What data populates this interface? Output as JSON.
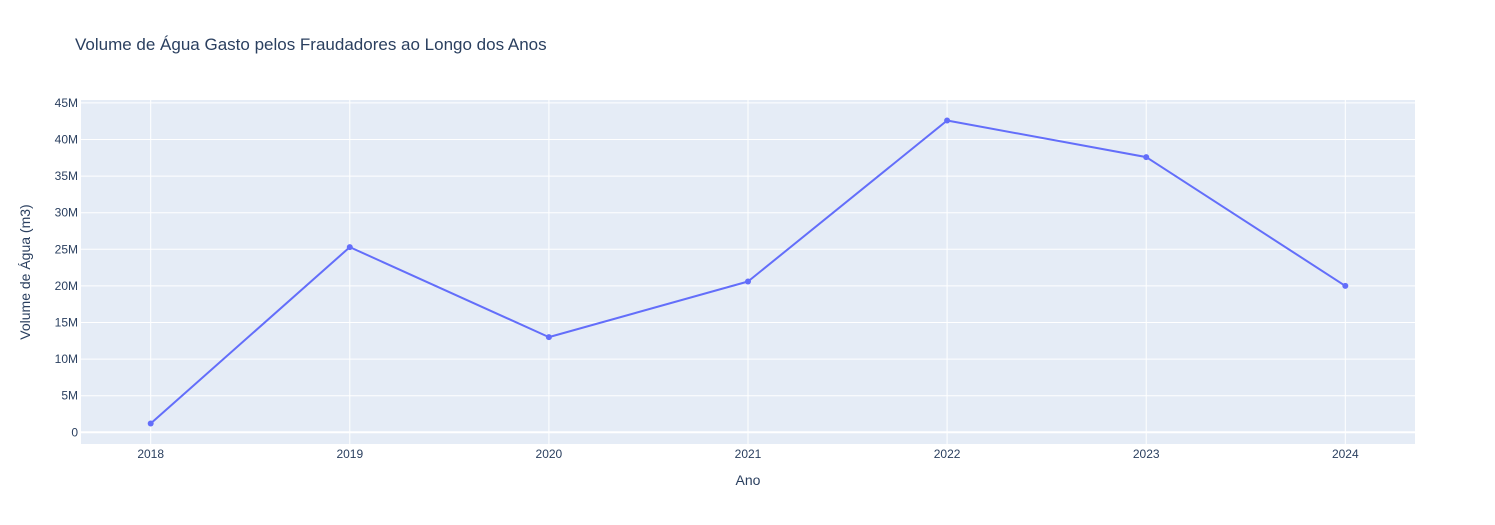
{
  "chart_data": {
    "type": "line",
    "title": "Volume de Água Gasto pelos Fraudadores ao Longo dos Anos",
    "xlabel": "Ano",
    "ylabel": "Volume de Água (m3)",
    "x": [
      2018,
      2019,
      2020,
      2021,
      2022,
      2023,
      2024
    ],
    "series": [
      {
        "values": [
          1200000,
          25300000,
          13000000,
          20600000,
          42600000,
          37600000,
          20000000
        ]
      }
    ],
    "x_ticks": [
      "2018",
      "2019",
      "2020",
      "2021",
      "2022",
      "2023",
      "2024"
    ],
    "y_ticks": [
      {
        "value": 0,
        "label": "0"
      },
      {
        "value": 5000000,
        "label": "5M"
      },
      {
        "value": 10000000,
        "label": "10M"
      },
      {
        "value": 15000000,
        "label": "15M"
      },
      {
        "value": 20000000,
        "label": "20M"
      },
      {
        "value": 25000000,
        "label": "25M"
      },
      {
        "value": 30000000,
        "label": "30M"
      },
      {
        "value": 35000000,
        "label": "35M"
      },
      {
        "value": 40000000,
        "label": "40M"
      },
      {
        "value": 45000000,
        "label": "45M"
      }
    ],
    "xlim": [
      2017.65,
      2024.35
    ],
    "ylim": [
      -1600000,
      45400000
    ],
    "grid": true,
    "legend": "none"
  },
  "colors": {
    "plot_background": "#e5ecf6",
    "grid": "#ffffff",
    "line": "#636efa",
    "text": "#2a3f5f"
  }
}
